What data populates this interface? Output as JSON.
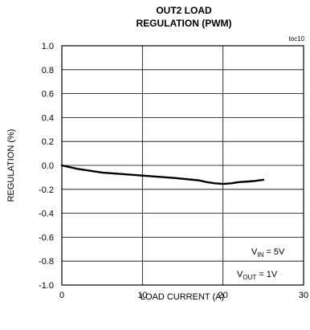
{
  "chart_data": {
    "type": "line",
    "title_lines": [
      "OUT2 LOAD",
      "REGULATION (PWM)"
    ],
    "tag": "toc10",
    "xlabel": "LOAD CURRENT (A)",
    "ylabel": "REGULATION (%)",
    "xlim": [
      0,
      30
    ],
    "ylim": [
      -1.0,
      1.0
    ],
    "x_ticks": [
      "0",
      "10",
      "20",
      "30"
    ],
    "y_ticks": [
      "1.0",
      "0.8",
      "0.6",
      "0.4",
      "0.2",
      "0.0",
      "-0.2",
      "-0.4",
      "-0.6",
      "-0.8",
      "-1.0"
    ],
    "grid": true,
    "series": [
      {
        "x": [
          0,
          2,
          5,
          8,
          11,
          14,
          17,
          18,
          19,
          20,
          21,
          22,
          23,
          24,
          25
        ],
        "y": [
          0.0,
          -0.03,
          -0.06,
          -0.075,
          -0.09,
          -0.105,
          -0.125,
          -0.14,
          -0.15,
          -0.155,
          -0.15,
          -0.14,
          -0.135,
          -0.13,
          -0.12
        ]
      }
    ],
    "annotations": [
      {
        "main": "V",
        "sub": "IN",
        "rest": " = 5V"
      },
      {
        "main": "V",
        "sub": "OUT",
        "rest": " = 1V"
      }
    ]
  }
}
